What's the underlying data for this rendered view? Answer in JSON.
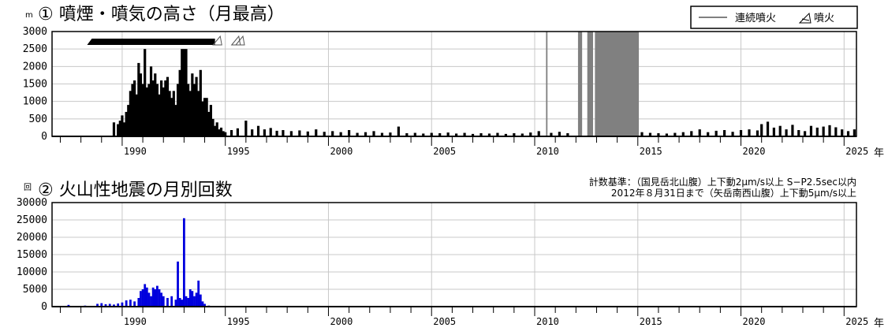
{
  "chart_data": [
    {
      "type": "bar",
      "title": "① 噴煙・噴気の高さ（月最高）",
      "ylabel": "m",
      "xlabel": "年",
      "xlim": [
        1986.6,
        2025.6
      ],
      "ylim": [
        0,
        3000
      ],
      "yticks": [
        0,
        500,
        1000,
        1500,
        2000,
        2500,
        3000
      ],
      "xticks": [
        1990,
        1995,
        2000,
        2005,
        2010,
        2015,
        2020,
        2025
      ],
      "grid": true,
      "legend_position": "top-right",
      "legend": [
        {
          "label": "連続噴火",
          "symbol": "gray-line"
        },
        {
          "label": "噴火",
          "symbol": "eruption-mark"
        }
      ],
      "colors": {
        "bars": "#000000",
        "continuous": "#808080",
        "grid": "#c8c8c8"
      },
      "continuous_eruption_periods": [
        [
          2010.55,
          2010.62
        ],
        [
          2012.1,
          2012.3
        ],
        [
          2012.55,
          2012.83
        ],
        [
          2012.92,
          2015.05
        ]
      ],
      "continuous_eruption_bar_early": [
        1988.3,
        1994.5
      ],
      "eruption_marks": [
        1994.6,
        1995.5,
        1995.7
      ],
      "series": [
        {
          "values": [
            [
              1989.6,
              400
            ],
            [
              1989.8,
              350
            ],
            [
              1989.9,
              450
            ],
            [
              1990.0,
              600
            ],
            [
              1990.1,
              400
            ],
            [
              1990.2,
              700
            ],
            [
              1990.3,
              900
            ],
            [
              1990.4,
              1300
            ],
            [
              1990.5,
              1500
            ],
            [
              1990.6,
              1600
            ],
            [
              1990.7,
              1200
            ],
            [
              1990.8,
              2100
            ],
            [
              1990.9,
              1800
            ],
            [
              1991.0,
              1500
            ],
            [
              1991.1,
              2500
            ],
            [
              1991.2,
              1400
            ],
            [
              1991.3,
              1500
            ],
            [
              1991.4,
              2000
            ],
            [
              1991.5,
              1600
            ],
            [
              1991.6,
              1800
            ],
            [
              1991.7,
              1500
            ],
            [
              1991.8,
              1200
            ],
            [
              1991.9,
              1600
            ],
            [
              1992.0,
              1400
            ],
            [
              1992.1,
              1600
            ],
            [
              1992.2,
              1700
            ],
            [
              1992.3,
              1300
            ],
            [
              1992.4,
              1100
            ],
            [
              1992.5,
              1300
            ],
            [
              1992.6,
              900
            ],
            [
              1992.7,
              1500
            ],
            [
              1992.8,
              1900
            ],
            [
              1992.9,
              2500
            ],
            [
              1993.0,
              2500
            ],
            [
              1993.1,
              2500
            ],
            [
              1993.2,
              1500
            ],
            [
              1993.3,
              1300
            ],
            [
              1993.4,
              1800
            ],
            [
              1993.5,
              1500
            ],
            [
              1993.6,
              1700
            ],
            [
              1993.7,
              1300
            ],
            [
              1993.8,
              1900
            ],
            [
              1993.9,
              1000
            ],
            [
              1994.0,
              1100
            ],
            [
              1994.1,
              1100
            ],
            [
              1994.2,
              700
            ],
            [
              1994.3,
              900
            ],
            [
              1994.4,
              500
            ],
            [
              1994.5,
              300
            ],
            [
              1994.6,
              400
            ],
            [
              1994.7,
              200
            ],
            [
              1994.8,
              250
            ],
            [
              1994.9,
              150
            ],
            [
              1995.0,
              120
            ],
            [
              1995.3,
              180
            ],
            [
              1995.6,
              230
            ],
            [
              1996.0,
              450
            ],
            [
              1996.3,
              200
            ],
            [
              1996.6,
              300
            ],
            [
              1996.9,
              200
            ],
            [
              1997.2,
              240
            ],
            [
              1997.5,
              160
            ],
            [
              1997.8,
              180
            ],
            [
              1998.2,
              150
            ],
            [
              1998.6,
              170
            ],
            [
              1999.0,
              140
            ],
            [
              1999.4,
              200
            ],
            [
              1999.8,
              130
            ],
            [
              2000.2,
              150
            ],
            [
              2000.6,
              120
            ],
            [
              2001.0,
              180
            ],
            [
              2001.4,
              100
            ],
            [
              2001.8,
              120
            ],
            [
              2002.2,
              150
            ],
            [
              2002.6,
              100
            ],
            [
              2003.0,
              110
            ],
            [
              2003.4,
              280
            ],
            [
              2003.8,
              90
            ],
            [
              2004.2,
              100
            ],
            [
              2004.6,
              80
            ],
            [
              2005.0,
              100
            ],
            [
              2005.4,
              90
            ],
            [
              2005.8,
              110
            ],
            [
              2006.2,
              80
            ],
            [
              2006.6,
              100
            ],
            [
              2007.0,
              70
            ],
            [
              2007.4,
              90
            ],
            [
              2007.8,
              80
            ],
            [
              2008.2,
              100
            ],
            [
              2008.6,
              70
            ],
            [
              2009.0,
              90
            ],
            [
              2009.4,
              80
            ],
            [
              2009.8,
              110
            ],
            [
              2010.2,
              150
            ],
            [
              2010.8,
              100
            ],
            [
              2011.2,
              130
            ],
            [
              2011.6,
              90
            ],
            [
              2015.2,
              120
            ],
            [
              2015.6,
              100
            ],
            [
              2016.0,
              90
            ],
            [
              2016.4,
              80
            ],
            [
              2016.8,
              100
            ],
            [
              2017.2,
              120
            ],
            [
              2017.6,
              150
            ],
            [
              2018.0,
              200
            ],
            [
              2018.4,
              120
            ],
            [
              2018.8,
              160
            ],
            [
              2019.2,
              180
            ],
            [
              2019.6,
              130
            ],
            [
              2020.0,
              180
            ],
            [
              2020.4,
              200
            ],
            [
              2020.8,
              170
            ],
            [
              2021.0,
              350
            ],
            [
              2021.3,
              420
            ],
            [
              2021.6,
              250
            ],
            [
              2021.9,
              300
            ],
            [
              2022.2,
              200
            ],
            [
              2022.5,
              330
            ],
            [
              2022.8,
              180
            ],
            [
              2023.1,
              150
            ],
            [
              2023.4,
              300
            ],
            [
              2023.7,
              250
            ],
            [
              2024.0,
              280
            ],
            [
              2024.3,
              320
            ],
            [
              2024.6,
              260
            ],
            [
              2024.9,
              200
            ],
            [
              2025.2,
              150
            ],
            [
              2025.5,
              200
            ]
          ]
        }
      ]
    },
    {
      "type": "bar",
      "title": "② 火山性地震の月別回数",
      "ylabel": "回",
      "xlabel": "年",
      "xlim": [
        1986.6,
        2025.6
      ],
      "ylim": [
        0,
        30000
      ],
      "yticks": [
        0,
        5000,
        10000,
        15000,
        20000,
        25000,
        30000
      ],
      "xticks": [
        1990,
        1995,
        2000,
        2005,
        2010,
        2015,
        2020,
        2025
      ],
      "grid": true,
      "colors": {
        "bars": "#0000dd",
        "grid": "#c8c8c8"
      },
      "notes": [
        "計数基準：（国見岳北山腹）上下動2μm/s以上 S−P2.5sec以内",
        "2012年８月31日まで（矢岳南西山腹）上下動5μm/s以上"
      ],
      "series": [
        {
          "values": [
            [
              1987.4,
              500
            ],
            [
              1988.2,
              300
            ],
            [
              1988.8,
              800
            ],
            [
              1989.0,
              1000
            ],
            [
              1989.2,
              700
            ],
            [
              1989.4,
              800
            ],
            [
              1989.6,
              600
            ],
            [
              1989.8,
              900
            ],
            [
              1990.0,
              1200
            ],
            [
              1990.2,
              1800
            ],
            [
              1990.4,
              2000
            ],
            [
              1990.6,
              1500
            ],
            [
              1990.8,
              2500
            ],
            [
              1990.9,
              4500
            ],
            [
              1991.0,
              5000
            ],
            [
              1991.1,
              6500
            ],
            [
              1991.2,
              5500
            ],
            [
              1991.3,
              4000
            ],
            [
              1991.4,
              3000
            ],
            [
              1991.5,
              5500
            ],
            [
              1991.6,
              5000
            ],
            [
              1991.7,
              6000
            ],
            [
              1991.8,
              5000
            ],
            [
              1991.9,
              4000
            ],
            [
              1992.0,
              3000
            ],
            [
              1992.2,
              2500
            ],
            [
              1992.4,
              3000
            ],
            [
              1992.6,
              2000
            ],
            [
              1992.7,
              13000
            ],
            [
              1992.8,
              2500
            ],
            [
              1992.9,
              2000
            ],
            [
              1993.0,
              25500
            ],
            [
              1993.1,
              3000
            ],
            [
              1993.2,
              2500
            ],
            [
              1993.3,
              5000
            ],
            [
              1993.4,
              4500
            ],
            [
              1993.5,
              3000
            ],
            [
              1993.6,
              4000
            ],
            [
              1993.7,
              7500
            ],
            [
              1993.8,
              3500
            ],
            [
              1993.9,
              1500
            ],
            [
              1994.0,
              800
            ],
            [
              1994.2,
              300
            ],
            [
              1994.4,
              150
            ],
            [
              1995.0,
              100
            ],
            [
              2000.0,
              50
            ],
            [
              2005.0,
              50
            ],
            [
              2010.0,
              80
            ],
            [
              2015.0,
              60
            ],
            [
              2020.0,
              60
            ],
            [
              2025.0,
              80
            ]
          ]
        }
      ]
    }
  ]
}
